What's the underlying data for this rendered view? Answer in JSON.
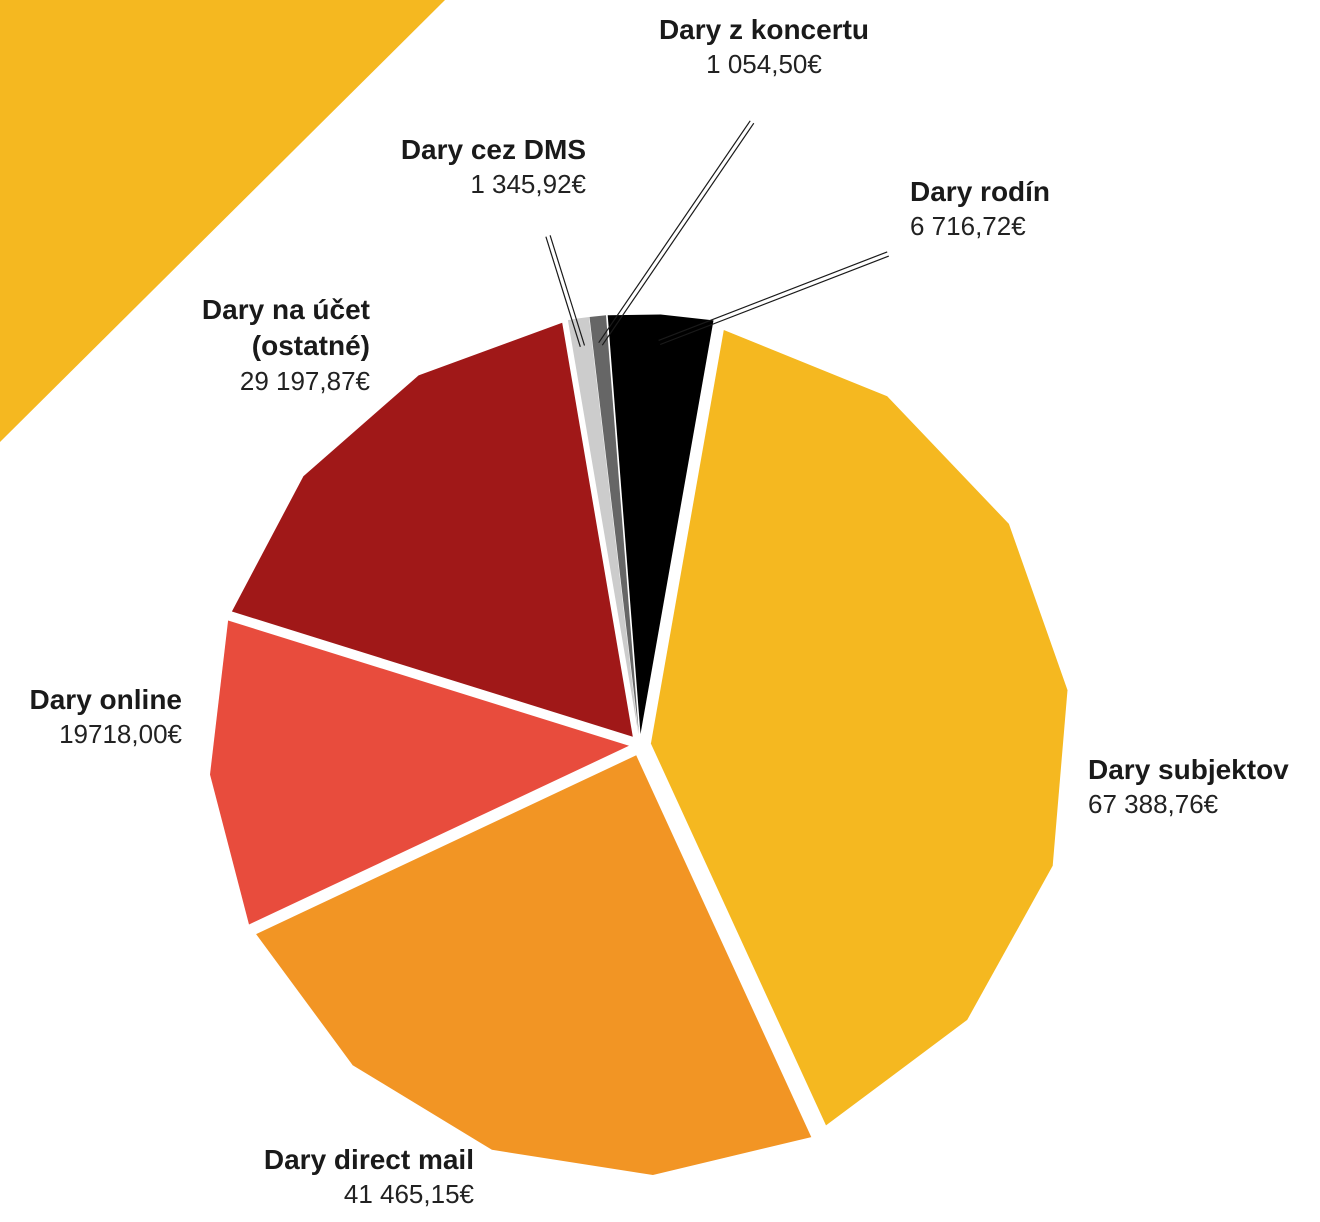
{
  "colors": {
    "corner_accent": "#F5B820",
    "background": "#FFFFFF",
    "leader_line": "#1A1A1A"
  },
  "chart_data": {
    "type": "pie",
    "title": "",
    "legend": "none",
    "labels_placement": "outside",
    "slices": [
      {
        "label": "Dary subjektov",
        "value": 67388.76,
        "value_label": "67 388,76€",
        "color": "#F5B820"
      },
      {
        "label": "Dary direct mail",
        "value": 41465.15,
        "value_label": "41 465,15€",
        "color": "#F29524"
      },
      {
        "label": "Dary online",
        "value": 19718.0,
        "value_label": "19718,00€",
        "color": "#E84C3D"
      },
      {
        "label": "Dary na účet (ostatné)",
        "value": 29197.87,
        "value_label": "29 197,87€",
        "color": "#A01818"
      },
      {
        "label": "Dary cez DMS",
        "value": 1345.92,
        "value_label": "1 345,92€",
        "color": "#CCCCCC"
      },
      {
        "label": "Dary z koncertu",
        "value": 1054.5,
        "value_label": "1 054,50€",
        "color": "#666666"
      },
      {
        "label": "Dary rodín",
        "value": 6716.72,
        "value_label": "6 716,72€",
        "color": "#000000"
      }
    ]
  }
}
